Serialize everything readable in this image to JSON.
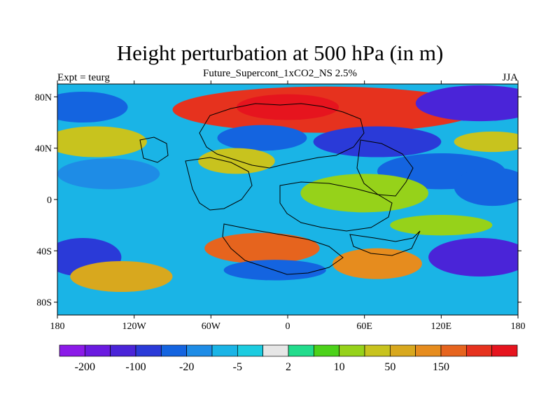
{
  "title": "Height perturbation at 500 hPa (in m)",
  "subtitle": "Future_Supercont_1xCO2_NS 2.5%",
  "left_string": "Expt = teurg",
  "right_string": "JJA",
  "map": {
    "lon_range": [
      -180,
      180
    ],
    "lat_range": [
      -90,
      90
    ],
    "x_ticks": [
      "180",
      "120W",
      "60W",
      "0",
      "60E",
      "120E",
      "180"
    ],
    "y_ticks": [
      "80N",
      "40N",
      "0",
      "40S",
      "80S"
    ]
  },
  "colorbar": {
    "colors": [
      "#8b1ae8",
      "#6a1ae0",
      "#4a24d8",
      "#2a3ad8",
      "#1464e0",
      "#1e8ce6",
      "#1ab4e6",
      "#1ccce0",
      "#e6e6e6",
      "#22dc8c",
      "#4cd21a",
      "#96d21a",
      "#c8c31e",
      "#d8a81e",
      "#e68c1e",
      "#e6641e",
      "#e6321e",
      "#e6141e"
    ],
    "labels": [
      "-200",
      "-100",
      "-20",
      "-5",
      "2",
      "10",
      "50",
      "150"
    ],
    "label_positions": [
      1,
      3,
      5,
      7,
      9,
      11,
      13,
      15
    ]
  },
  "field_blobs": [
    {
      "lon": 30,
      "lat": 70,
      "rx": 120,
      "ry": 18,
      "level": 16
    },
    {
      "lon": 0,
      "lat": 72,
      "rx": 40,
      "ry": 10,
      "level": 17
    },
    {
      "lon": 150,
      "lat": 75,
      "rx": 50,
      "ry": 14,
      "level": 2
    },
    {
      "lon": -160,
      "lat": 72,
      "rx": 35,
      "ry": 12,
      "level": 4
    },
    {
      "lon": -150,
      "lat": 45,
      "rx": 40,
      "ry": 12,
      "level": 12
    },
    {
      "lon": 160,
      "lat": 45,
      "rx": 30,
      "ry": 8,
      "level": 12
    },
    {
      "lon": 70,
      "lat": 45,
      "rx": 50,
      "ry": 12,
      "level": 3
    },
    {
      "lon": -20,
      "lat": 48,
      "rx": 35,
      "ry": 10,
      "level": 4
    },
    {
      "lon": -40,
      "lat": 30,
      "rx": 30,
      "ry": 10,
      "level": 12
    },
    {
      "lon": -140,
      "lat": 20,
      "rx": 40,
      "ry": 12,
      "level": 5
    },
    {
      "lon": 120,
      "lat": 22,
      "rx": 50,
      "ry": 14,
      "level": 4
    },
    {
      "lon": 160,
      "lat": 10,
      "rx": 30,
      "ry": 15,
      "level": 4
    },
    {
      "lon": 60,
      "lat": 5,
      "rx": 50,
      "ry": 15,
      "level": 11
    },
    {
      "lon": -160,
      "lat": -45,
      "rx": 30,
      "ry": 15,
      "level": 3
    },
    {
      "lon": -130,
      "lat": -60,
      "rx": 40,
      "ry": 12,
      "level": 13
    },
    {
      "lon": -20,
      "lat": -38,
      "rx": 45,
      "ry": 12,
      "level": 15
    },
    {
      "lon": -10,
      "lat": -55,
      "rx": 40,
      "ry": 8,
      "level": 4
    },
    {
      "lon": 70,
      "lat": -50,
      "rx": 35,
      "ry": 12,
      "level": 14
    },
    {
      "lon": 150,
      "lat": -45,
      "rx": 40,
      "ry": 15,
      "level": 2
    },
    {
      "lon": 120,
      "lat": -20,
      "rx": 40,
      "ry": 8,
      "level": 11
    }
  ]
}
